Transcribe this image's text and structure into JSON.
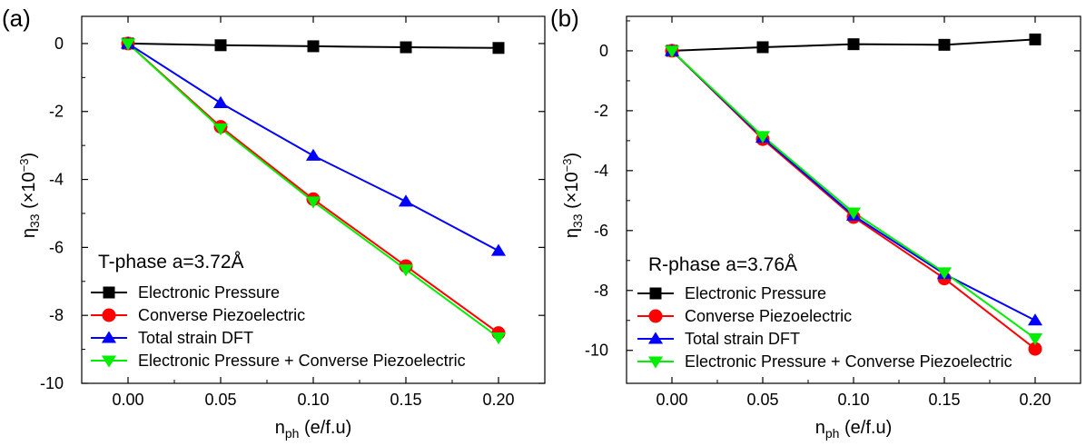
{
  "chart_data": [
    {
      "type": "line",
      "panel_label": "(a)",
      "annotation": "T-phase a=3.72Å",
      "xlabel": {
        "main": "n",
        "sub": "ph",
        "unit": " (e/f.u)"
      },
      "ylabel": {
        "main": "η",
        "sub": "33",
        "unit": " (×10",
        "exp": "−3",
        "close": ")"
      },
      "x": [
        0.0,
        0.05,
        0.1,
        0.15,
        0.2
      ],
      "xlim": [
        -0.025,
        0.225
      ],
      "ylim": [
        -10,
        0.8
      ],
      "xticks": [
        "0.00",
        "0.05",
        "0.10",
        "0.15",
        "0.20"
      ],
      "yticks": [
        "0",
        "-2",
        "-4",
        "-6",
        "-8",
        "-10"
      ],
      "legend_position": "lower-left",
      "series": [
        {
          "name": "Electronic Pressure",
          "color": "#000000",
          "marker": "square",
          "values": [
            0.0,
            -0.05,
            -0.08,
            -0.11,
            -0.13
          ]
        },
        {
          "name": "Converse Piezoelectric",
          "color": "#ff0000",
          "marker": "circle",
          "values": [
            0.0,
            -2.45,
            -4.58,
            -6.55,
            -8.52
          ]
        },
        {
          "name": "Total strain DFT",
          "color": "#0000ff",
          "marker": "triangle-up",
          "values": [
            0.0,
            -1.75,
            -3.3,
            -4.65,
            -6.1
          ]
        },
        {
          "name": "Electronic Pressure + Converse Piezoelectric",
          "color": "#00ee00",
          "marker": "triangle-down",
          "values": [
            0.0,
            -2.5,
            -4.65,
            -6.65,
            -8.65
          ]
        }
      ]
    },
    {
      "type": "line",
      "panel_label": "(b)",
      "annotation": "R-phase a=3.76Å",
      "xlabel": {
        "main": "n",
        "sub": "ph",
        "unit": " (e/f.u)"
      },
      "ylabel": {
        "main": "η",
        "sub": "33",
        "unit": " (×10",
        "exp": "−3",
        "close": ")"
      },
      "x": [
        0.0,
        0.05,
        0.1,
        0.15,
        0.2
      ],
      "xlim": [
        -0.025,
        0.225
      ],
      "ylim": [
        -11.1,
        1.15
      ],
      "xticks": [
        "0.00",
        "0.05",
        "0.10",
        "0.15",
        "0.20"
      ],
      "yticks": [
        "0",
        "-2",
        "-4",
        "-6",
        "-8",
        "-10"
      ],
      "legend_position": "lower-left",
      "series": [
        {
          "name": "Electronic Pressure",
          "color": "#000000",
          "marker": "square",
          "values": [
            0.0,
            0.12,
            0.22,
            0.2,
            0.38
          ]
        },
        {
          "name": "Converse Piezoelectric",
          "color": "#ff0000",
          "marker": "circle",
          "values": [
            0.0,
            -2.95,
            -5.55,
            -7.6,
            -9.95
          ]
        },
        {
          "name": "Total strain DFT",
          "color": "#0000ff",
          "marker": "triangle-up",
          "values": [
            0.0,
            -2.9,
            -5.5,
            -7.45,
            -9.0
          ]
        },
        {
          "name": "Electronic Pressure + Converse Piezoelectric",
          "color": "#00ee00",
          "marker": "triangle-down",
          "values": [
            0.0,
            -2.85,
            -5.4,
            -7.4,
            -9.6
          ]
        }
      ]
    }
  ]
}
